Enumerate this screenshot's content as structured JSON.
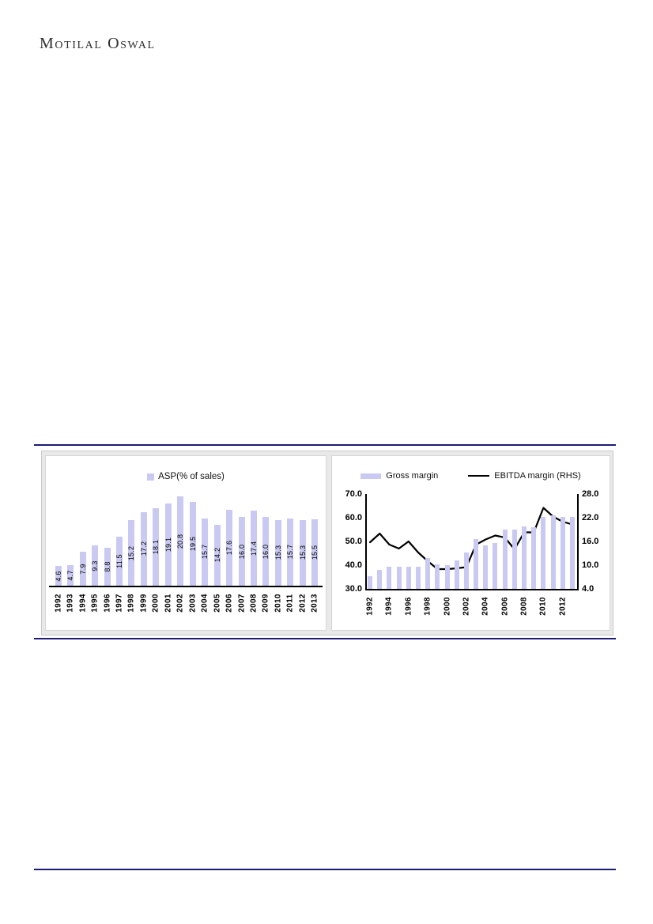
{
  "brand": {
    "name": "Motilal Oswal"
  },
  "colors": {
    "bar_fill": "#c9c9f2",
    "line_stroke": "#000000",
    "rule_navy": "#1b1b78",
    "box_gray": "#e9e9e9"
  },
  "chart_data": [
    {
      "type": "bar",
      "title": "ASP(% of sales)",
      "legend": [
        "ASP(% of sales)"
      ],
      "legend_position": "top",
      "categories": [
        "1992",
        "1993",
        "1994",
        "1995",
        "1996",
        "1997",
        "1998",
        "1999",
        "2000",
        "2001",
        "2002",
        "2003",
        "2004",
        "2005",
        "2006",
        "2007",
        "2008",
        "2009",
        "2010",
        "2011",
        "2012",
        "2013"
      ],
      "values": [
        4.6,
        4.7,
        7.9,
        9.3,
        8.8,
        11.5,
        15.2,
        17.2,
        18.1,
        19.1,
        20.8,
        19.5,
        15.7,
        14.2,
        17.6,
        16.0,
        17.4,
        16.0,
        15.3,
        15.7,
        15.3,
        15.5
      ],
      "data_labels": "values shown rotated 90deg centered inside each bar, one decimal",
      "xlabel": "",
      "ylabel": "",
      "ylim": [
        0,
        22
      ],
      "grid": false,
      "axes_shown": "baseline only, no y axis"
    },
    {
      "type": "bar+line",
      "title": "",
      "legend_position": "top",
      "categories": [
        "1992",
        "1993",
        "1994",
        "1995",
        "1996",
        "1997",
        "1998",
        "1999",
        "2000",
        "2001",
        "2002",
        "2003",
        "2004",
        "2005",
        "2006",
        "2007",
        "2008",
        "2009",
        "2010",
        "2011",
        "2012",
        "2013"
      ],
      "series": [
        {
          "name": "Gross margin",
          "type": "bar",
          "axis": "left",
          "values": [
            35.5,
            38.0,
            39.5,
            39.5,
            39.5,
            39.5,
            43.0,
            40.5,
            40.0,
            42.0,
            45.5,
            51.0,
            48.5,
            49.5,
            55.0,
            55.0,
            56.5,
            56.0,
            60.5,
            61.0,
            60.5,
            60.5
          ]
        },
        {
          "name": "EBITDA margin (RHS)",
          "type": "line",
          "axis": "right",
          "values": [
            15.8,
            18.0,
            15.2,
            14.2,
            16.0,
            13.2,
            11.0,
            9.0,
            9.0,
            9.2,
            9.5,
            15.2,
            16.5,
            17.5,
            17.0,
            14.0,
            18.3,
            18.3,
            24.5,
            22.3,
            21.0,
            20.3
          ]
        }
      ],
      "left_axis": {
        "min": 30,
        "max": 70,
        "tick_labels": [
          "70.0",
          "60.0",
          "50.0",
          "40.0",
          "30.0"
        ]
      },
      "right_axis": {
        "min": 4,
        "max": 28,
        "tick_labels": [
          "28.0",
          "22.0",
          "16.0",
          "10.0",
          "4.0"
        ]
      },
      "x_tick_labels": [
        "1992",
        "1994",
        "1996",
        "1998",
        "2000",
        "2002",
        "2004",
        "2006",
        "2008",
        "2010",
        "2012"
      ],
      "grid": false
    }
  ]
}
